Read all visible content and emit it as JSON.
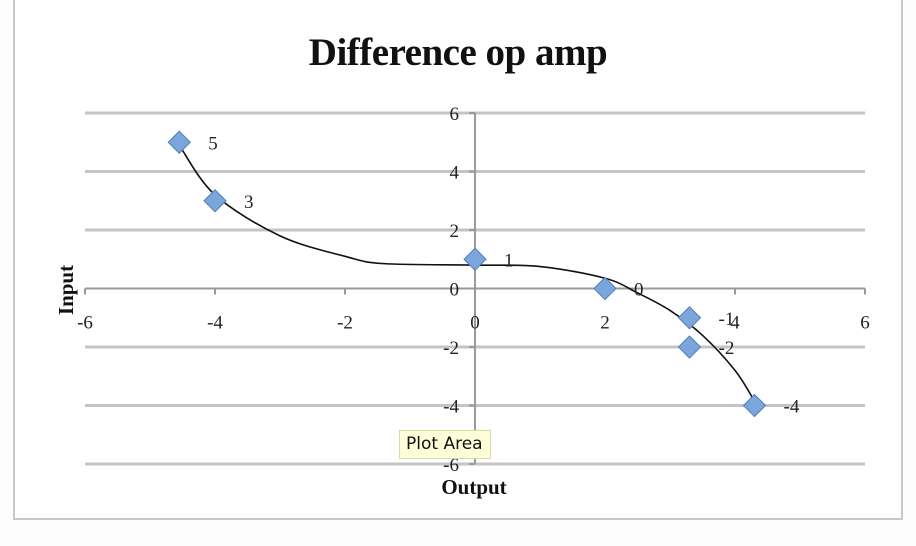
{
  "chart": {
    "title": "Difference op amp",
    "x_axis_title": "Output",
    "y_axis_title": "Input",
    "tooltip": "Plot Area"
  },
  "colors": {
    "marker_fill": "#7aa6dc",
    "marker_stroke": "#4f7fbf",
    "gridline": "#c4c4c4",
    "axis": "#9a9a9a",
    "trendline": "#111111",
    "frame": "#c8c8c8"
  },
  "chart_data": {
    "type": "scatter",
    "title": "Difference op amp",
    "xlabel": "Output",
    "ylabel": "Input",
    "xlim": [
      -6,
      6
    ],
    "ylim": [
      -6,
      6
    ],
    "x_ticks": [
      -6,
      -4,
      -2,
      0,
      2,
      4,
      6
    ],
    "y_ticks": [
      -6,
      -4,
      -2,
      0,
      2,
      4,
      6
    ],
    "grid": "horizontal major gridlines",
    "legend": "none",
    "series": [
      {
        "name": "Input",
        "marker": "diamond",
        "points": [
          {
            "x": -4.55,
            "y": 5,
            "label": "5"
          },
          {
            "x": -4.0,
            "y": 3,
            "label": "3"
          },
          {
            "x": 0.0,
            "y": 1,
            "label": "1"
          },
          {
            "x": 2.0,
            "y": 0,
            "label": "0"
          },
          {
            "x": 3.3,
            "y": -1,
            "label": "-1"
          },
          {
            "x": 3.3,
            "y": -2,
            "label": "-2"
          },
          {
            "x": 4.3,
            "y": -4,
            "label": "-4"
          }
        ]
      }
    ],
    "trendline": {
      "type": "polynomial (cubic)",
      "points": [
        {
          "x": -4.55,
          "y": 4.9
        },
        {
          "x": -4.0,
          "y": 3.2
        },
        {
          "x": -3.0,
          "y": 1.8
        },
        {
          "x": -2.0,
          "y": 1.1
        },
        {
          "x": -1.4,
          "y": 0.85
        },
        {
          "x": 0.0,
          "y": 0.8
        },
        {
          "x": 1.0,
          "y": 0.75
        },
        {
          "x": 2.0,
          "y": 0.35
        },
        {
          "x": 2.5,
          "y": -0.15
        },
        {
          "x": 3.0,
          "y": -0.75
        },
        {
          "x": 3.5,
          "y": -1.6
        },
        {
          "x": 4.0,
          "y": -2.8
        },
        {
          "x": 4.3,
          "y": -3.85
        }
      ]
    }
  }
}
